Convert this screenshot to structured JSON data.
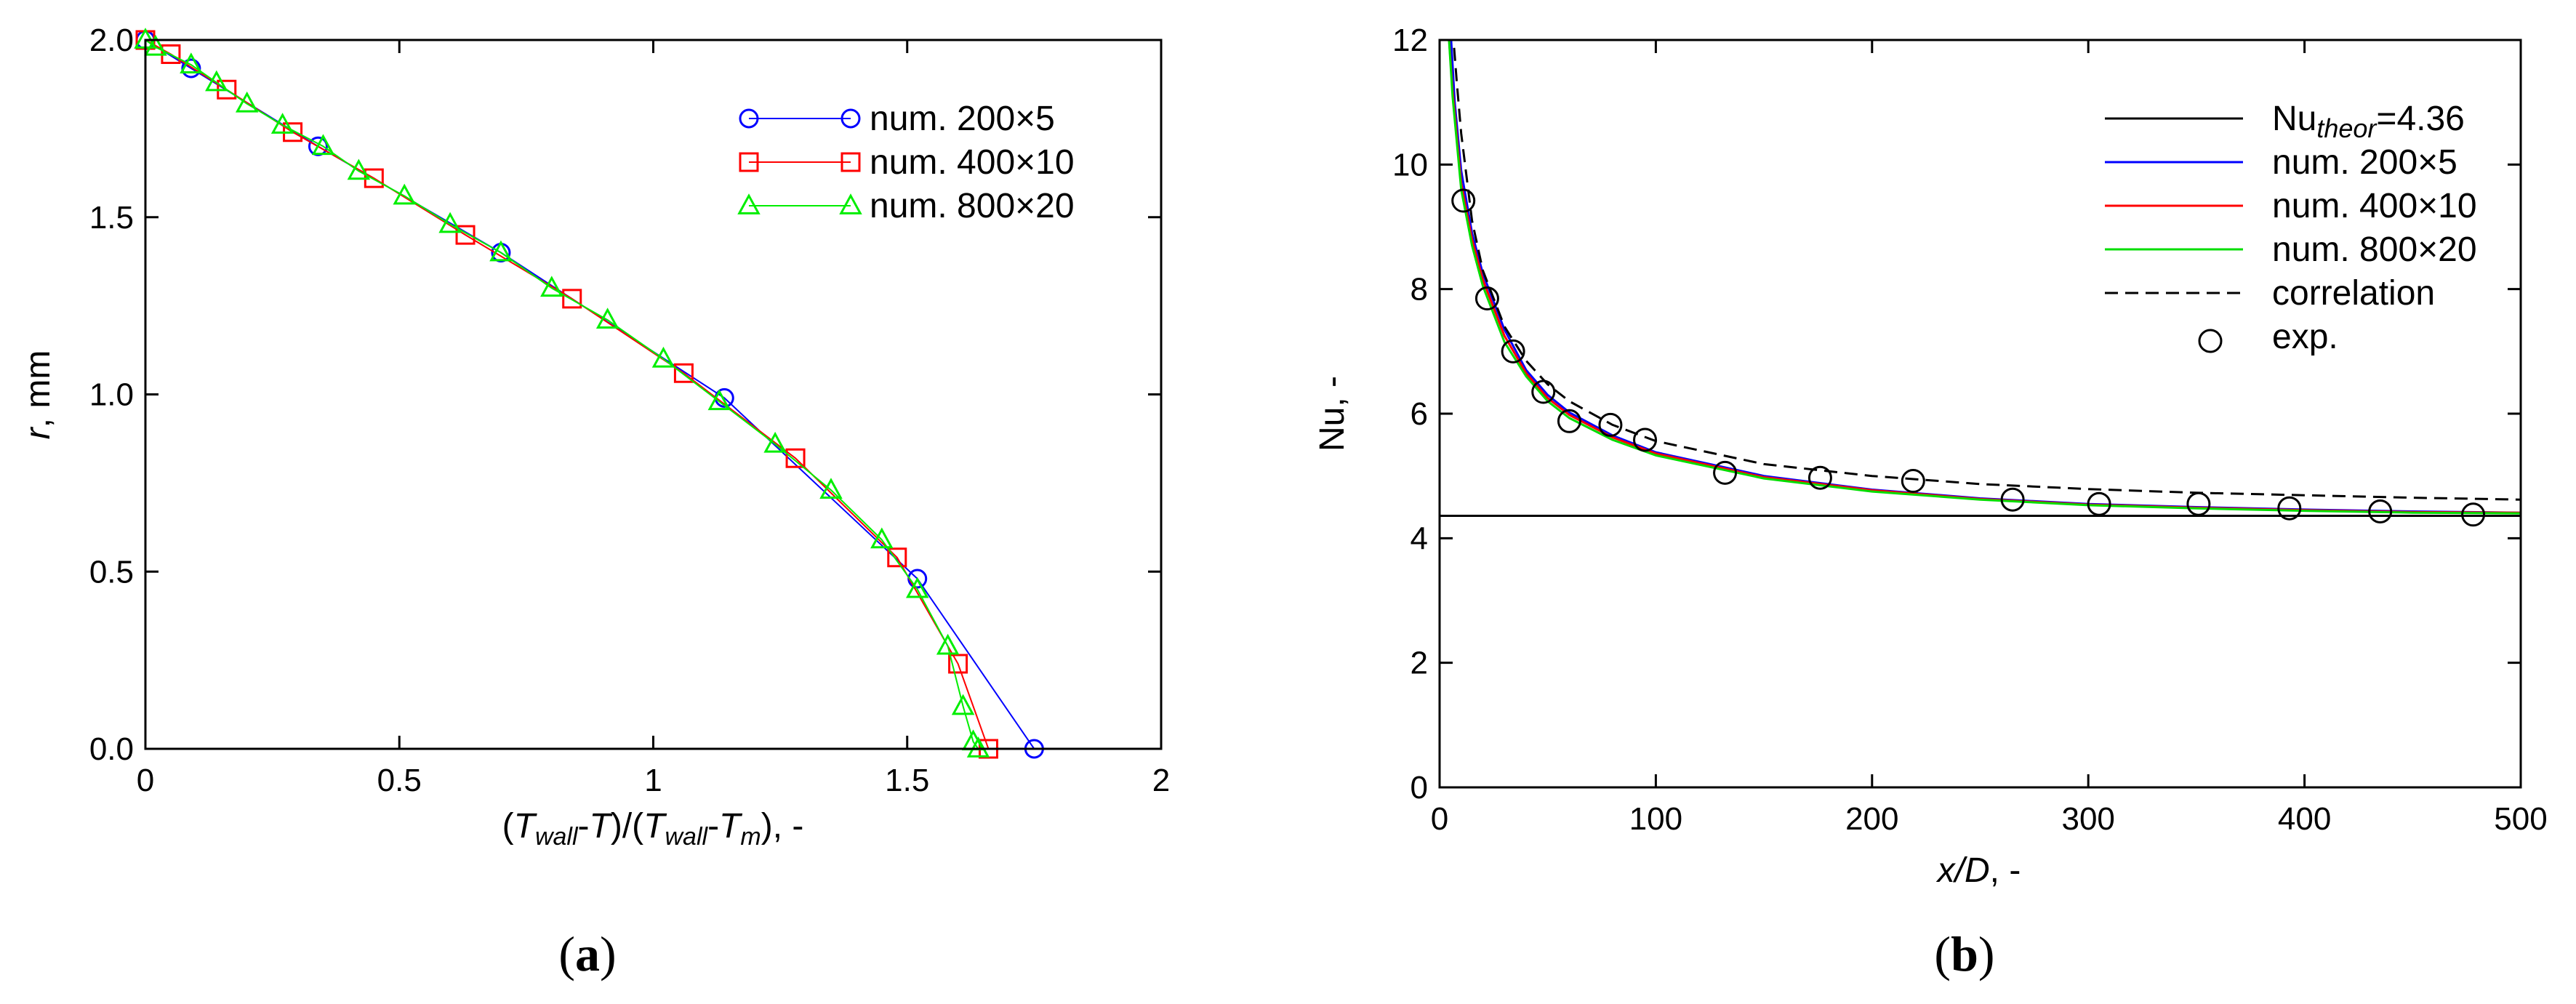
{
  "chart_data": [
    {
      "type": "line",
      "panel_label": {
        "open": "(",
        "letter": "a",
        "close": ")"
      },
      "xlabel": {
        "p1": "(",
        "T1": "T",
        "sub1": "wall",
        "m1": "-",
        "T2": "T",
        "p2": ")/(",
        "T3": "T",
        "sub3": "wall",
        "m3": "-",
        "T4": "T",
        "sub4": "m",
        "tail": "), -"
      },
      "ylabel": {
        "r": "r",
        "unit": ", mm"
      },
      "xlim": [
        0,
        2
      ],
      "ylim": [
        0,
        2
      ],
      "xticks": [
        "0",
        "0.5",
        "1",
        "1.5",
        "2"
      ],
      "yticks": [
        "0.0",
        "0.5",
        "1.0",
        "1.5",
        "2.0"
      ],
      "legend_position": "top-right",
      "series": [
        {
          "name": "num. 200×5",
          "color": "#0000ff",
          "marker": "circle",
          "x": [
            0.0,
            0.09,
            0.34,
            0.7,
            1.14,
            1.52,
            1.75
          ],
          "y": [
            2.0,
            1.92,
            1.7,
            1.4,
            0.99,
            0.48,
            0.0
          ]
        },
        {
          "name": "num. 400×10",
          "color": "#ff0000",
          "marker": "square",
          "x": [
            0.0,
            0.05,
            0.16,
            0.29,
            0.45,
            0.63,
            0.84,
            1.06,
            1.28,
            1.48,
            1.6,
            1.66
          ],
          "y": [
            2.0,
            1.96,
            1.86,
            1.74,
            1.61,
            1.45,
            1.27,
            1.06,
            0.82,
            0.54,
            0.24,
            0.0
          ]
        },
        {
          "name": "num. 800×20",
          "color": "#00ee00",
          "marker": "triangle",
          "x": [
            0.0,
            0.02,
            0.09,
            0.14,
            0.2,
            0.27,
            0.35,
            0.42,
            0.51,
            0.6,
            0.7,
            0.8,
            0.91,
            1.02,
            1.13,
            1.24,
            1.35,
            1.45,
            1.52,
            1.58,
            1.61,
            1.63,
            1.64
          ],
          "y": [
            2.0,
            1.98,
            1.93,
            1.88,
            1.82,
            1.76,
            1.7,
            1.63,
            1.56,
            1.48,
            1.4,
            1.3,
            1.21,
            1.1,
            0.98,
            0.86,
            0.73,
            0.59,
            0.45,
            0.29,
            0.12,
            0.02,
            0.0
          ]
        }
      ]
    },
    {
      "type": "line",
      "panel_label": {
        "open": "(",
        "letter": "b",
        "close": ")"
      },
      "xlabel": {
        "text": "x/D",
        "tail": ", -"
      },
      "ylabel": {
        "text": "Nu, -"
      },
      "xlim": [
        0,
        500
      ],
      "ylim": [
        0,
        12
      ],
      "xticks": [
        "0",
        "100",
        "200",
        "300",
        "400",
        "500"
      ],
      "yticks": [
        "0",
        "2",
        "4",
        "6",
        "8",
        "10",
        "12"
      ],
      "legend_position": "top-right",
      "theoretical": {
        "label_main": "Nu",
        "label_sub": "theor",
        "label_tail": "=4.36",
        "value": 4.36,
        "color": "#000000"
      },
      "series": [
        {
          "name": "num. 200×5",
          "color": "#0000ff",
          "x": [
            5,
            7,
            10,
            15,
            20,
            30,
            40,
            50,
            60,
            80,
            100,
            150,
            200,
            250,
            300,
            350,
            400,
            450,
            500
          ],
          "y": [
            12.2,
            11.0,
            9.9,
            8.9,
            8.25,
            7.35,
            6.7,
            6.3,
            6.02,
            5.65,
            5.38,
            5.0,
            4.78,
            4.64,
            4.55,
            4.5,
            4.46,
            4.43,
            4.41
          ]
        },
        {
          "name": "num. 400×10",
          "color": "#ff0000",
          "x": [
            4,
            6,
            10,
            15,
            20,
            30,
            40,
            50,
            60,
            80,
            100,
            150,
            200,
            250,
            300,
            350,
            400,
            450,
            500
          ],
          "y": [
            12.2,
            11.2,
            9.7,
            8.8,
            8.15,
            7.25,
            6.65,
            6.25,
            5.98,
            5.62,
            5.36,
            4.98,
            4.77,
            4.63,
            4.54,
            4.49,
            4.45,
            4.42,
            4.41
          ]
        },
        {
          "name": "num. 800×20",
          "color": "#00dd00",
          "x": [
            4,
            6,
            10,
            15,
            20,
            30,
            40,
            50,
            60,
            80,
            100,
            150,
            200,
            250,
            300,
            350,
            400,
            450,
            500
          ],
          "y": [
            12.2,
            11.1,
            9.6,
            8.7,
            8.05,
            7.15,
            6.6,
            6.2,
            5.93,
            5.58,
            5.33,
            4.96,
            4.75,
            4.62,
            4.53,
            4.48,
            4.44,
            4.41,
            4.4
          ]
        },
        {
          "name": "correlation",
          "color": "#000000",
          "dashed": true,
          "x": [
            6,
            8,
            10,
            15,
            20,
            30,
            40,
            50,
            60,
            80,
            100,
            150,
            200,
            250,
            300,
            350,
            400,
            450,
            500
          ],
          "y": [
            12.2,
            11.3,
            10.5,
            9.1,
            8.3,
            7.4,
            6.85,
            6.47,
            6.2,
            5.82,
            5.56,
            5.19,
            5.0,
            4.87,
            4.79,
            4.73,
            4.69,
            4.65,
            4.62
          ]
        },
        {
          "name": "exp.",
          "color": "#000000",
          "marker": "circle",
          "markers_only": true,
          "x": [
            11,
            22,
            34,
            48,
            60,
            79,
            95,
            132,
            176,
            219,
            265,
            305,
            351,
            393,
            435,
            478
          ],
          "y": [
            9.42,
            7.85,
            7.0,
            6.35,
            5.88,
            5.82,
            5.58,
            5.05,
            4.97,
            4.92,
            4.62,
            4.55,
            4.55,
            4.48,
            4.43,
            4.38
          ]
        }
      ]
    }
  ]
}
